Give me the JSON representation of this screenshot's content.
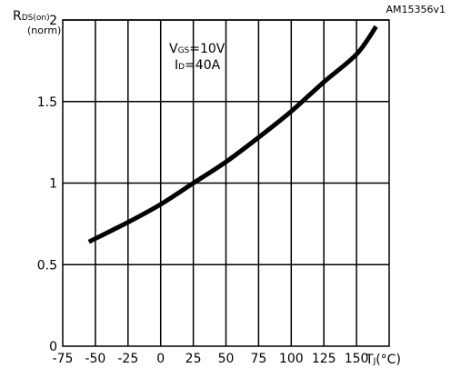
{
  "figure_id": "AM15356v1",
  "chart_data": {
    "type": "line",
    "ylabel_main": "R",
    "ylabel_sub": "DS(on)",
    "ylabel_unit": "(norm)",
    "xlabel_main": "T",
    "xlabel_sub": "J",
    "xlabel_unit": "(°C)",
    "annotation": {
      "line1_main": "V",
      "line1_sub": "GS",
      "line1_value": "=10V",
      "line2_main": "I",
      "line2_sub": "D",
      "line2_value": "=40A"
    },
    "xlim": [
      -75,
      175
    ],
    "ylim": [
      0,
      2
    ],
    "x_ticks": [
      -75,
      -50,
      -25,
      0,
      25,
      50,
      75,
      100,
      125,
      150
    ],
    "x_tick_labels": [
      "-75",
      "-50",
      "-25",
      "0",
      "25",
      "50",
      "75",
      "100",
      "125",
      "150"
    ],
    "y_ticks": [
      0,
      0.5,
      1,
      1.5,
      2
    ],
    "y_tick_labels": [
      "0",
      "0.5",
      "1",
      "1.5",
      "2"
    ],
    "grid": true,
    "series": [
      {
        "x": [
          -55,
          -25,
          0,
          25,
          50,
          75,
          100,
          125,
          150,
          165
        ],
        "y": [
          0.64,
          0.76,
          0.87,
          1.0,
          1.13,
          1.28,
          1.44,
          1.62,
          1.79,
          1.96
        ]
      }
    ]
  }
}
